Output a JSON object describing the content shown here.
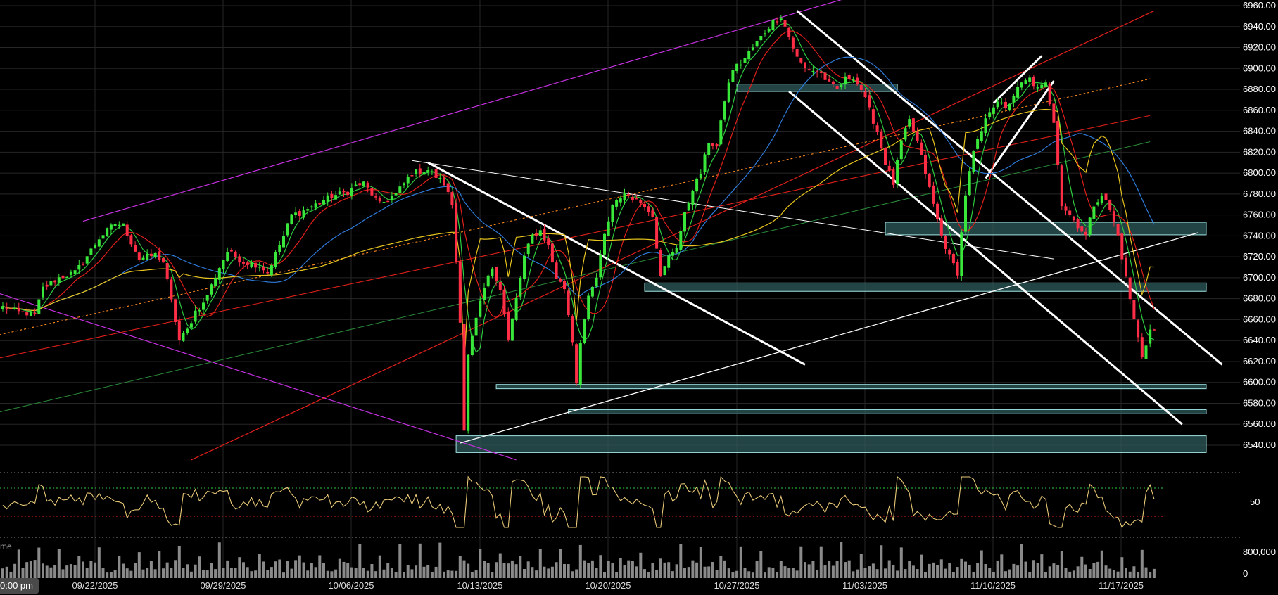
{
  "chart_data": {
    "type": "candlestick",
    "price_axis": {
      "ticks": [
        "6960.00",
        "6940.00",
        "6920.00",
        "6900.00",
        "6880.00",
        "6860.00",
        "6840.00",
        "6820.00",
        "6800.00",
        "6780.00",
        "6760.00",
        "6740.00",
        "6720.00",
        "6700.00",
        "6680.00",
        "6660.00",
        "6640.00",
        "6620.00",
        "6600.00",
        "6580.00",
        "6560.00",
        "6540.00"
      ],
      "ylim": [
        6526,
        6964
      ]
    },
    "date_labels": [
      "09/22/2025",
      "09/29/2025",
      "10/06/2025",
      "10/13/2025",
      "10/20/2025",
      "10/27/2025",
      "11/03/2025",
      "11/10/2025",
      "11/17/2025"
    ],
    "time_badge": "0:00 pm",
    "rsi_axis": {
      "ticks": [
        "50"
      ],
      "upper": 70,
      "lower": 30
    },
    "volume_axis": {
      "ticks": [
        "800,000",
        "0"
      ],
      "label": "me"
    },
    "price_anchors": [
      [
        0,
        6672
      ],
      [
        4,
        6667
      ],
      [
        8,
        6665
      ],
      [
        10,
        6690
      ],
      [
        14,
        6700
      ],
      [
        18,
        6705
      ],
      [
        20,
        6715
      ],
      [
        24,
        6738
      ],
      [
        28,
        6752
      ],
      [
        30,
        6750
      ],
      [
        34,
        6718
      ],
      [
        38,
        6722
      ],
      [
        40,
        6715
      ],
      [
        44,
        6640
      ],
      [
        46,
        6650
      ],
      [
        48,
        6668
      ],
      [
        50,
        6675
      ],
      [
        54,
        6710
      ],
      [
        56,
        6725
      ],
      [
        60,
        6715
      ],
      [
        64,
        6712
      ],
      [
        66,
        6705
      ],
      [
        70,
        6740
      ],
      [
        72,
        6760
      ],
      [
        74,
        6762
      ],
      [
        78,
        6770
      ],
      [
        82,
        6778
      ],
      [
        86,
        6782
      ],
      [
        88,
        6788
      ],
      [
        90,
        6790
      ],
      [
        94,
        6770
      ],
      [
        98,
        6780
      ],
      [
        102,
        6800
      ],
      [
        106,
        6803
      ],
      [
        110,
        6790
      ],
      [
        112,
        6770
      ],
      [
        114,
        6660
      ],
      [
        115,
        6555
      ],
      [
        116,
        6625
      ],
      [
        118,
        6660
      ],
      [
        120,
        6690
      ],
      [
        122,
        6710
      ],
      [
        124,
        6690
      ],
      [
        126,
        6640
      ],
      [
        128,
        6680
      ],
      [
        130,
        6720
      ],
      [
        132,
        6740
      ],
      [
        134,
        6745
      ],
      [
        136,
        6730
      ],
      [
        138,
        6700
      ],
      [
        140,
        6690
      ],
      [
        142,
        6640
      ],
      [
        143,
        6600
      ],
      [
        144,
        6640
      ],
      [
        146,
        6680
      ],
      [
        148,
        6700
      ],
      [
        150,
        6740
      ],
      [
        152,
        6770
      ],
      [
        154,
        6778
      ],
      [
        156,
        6780
      ],
      [
        158,
        6775
      ],
      [
        160,
        6770
      ],
      [
        162,
        6760
      ],
      [
        164,
        6700
      ],
      [
        166,
        6720
      ],
      [
        168,
        6730
      ],
      [
        170,
        6760
      ],
      [
        172,
        6785
      ],
      [
        174,
        6800
      ],
      [
        176,
        6830
      ],
      [
        178,
        6825
      ],
      [
        180,
        6870
      ],
      [
        182,
        6900
      ],
      [
        184,
        6905
      ],
      [
        186,
        6915
      ],
      [
        188,
        6925
      ],
      [
        190,
        6935
      ],
      [
        192,
        6945
      ],
      [
        194,
        6950
      ],
      [
        196,
        6930
      ],
      [
        198,
        6910
      ],
      [
        200,
        6900
      ],
      [
        202,
        6898
      ],
      [
        204,
        6895
      ],
      [
        206,
        6885
      ],
      [
        208,
        6880
      ],
      [
        210,
        6890
      ],
      [
        212,
        6892
      ],
      [
        214,
        6880
      ],
      [
        216,
        6860
      ],
      [
        218,
        6840
      ],
      [
        220,
        6810
      ],
      [
        222,
        6790
      ],
      [
        224,
        6830
      ],
      [
        226,
        6850
      ],
      [
        228,
        6830
      ],
      [
        230,
        6800
      ],
      [
        232,
        6770
      ],
      [
        234,
        6740
      ],
      [
        236,
        6720
      ],
      [
        238,
        6705
      ],
      [
        240,
        6780
      ],
      [
        242,
        6820
      ],
      [
        244,
        6840
      ],
      [
        246,
        6860
      ],
      [
        248,
        6870
      ],
      [
        250,
        6860
      ],
      [
        252,
        6875
      ],
      [
        254,
        6885
      ],
      [
        256,
        6890
      ],
      [
        258,
        6880
      ],
      [
        260,
        6885
      ],
      [
        262,
        6850
      ],
      [
        264,
        6770
      ],
      [
        266,
        6760
      ],
      [
        268,
        6750
      ],
      [
        270,
        6740
      ],
      [
        272,
        6770
      ],
      [
        274,
        6780
      ],
      [
        276,
        6765
      ],
      [
        278,
        6740
      ],
      [
        280,
        6700
      ],
      [
        282,
        6660
      ],
      [
        284,
        6625
      ],
      [
        286,
        6650
      ]
    ],
    "moving_averages": [
      {
        "color": "#2ecc40",
        "period": 5
      },
      {
        "color": "#e0201a",
        "period": 10
      },
      {
        "color": "#2e7ad8",
        "period": 30
      },
      {
        "color": "#e8c51e",
        "period": 80
      }
    ],
    "zones": [
      {
        "start": 183,
        "end": 223,
        "low": 6878,
        "high": 6885
      },
      {
        "start": 220,
        "end": 300,
        "low": 6741,
        "high": 6753
      },
      {
        "start": 160,
        "end": 300,
        "low": 6687,
        "high": 6695
      },
      {
        "start": 123,
        "end": 300,
        "low": 6594,
        "high": 6598
      },
      {
        "start": 141,
        "end": 300,
        "low": 6570,
        "high": 6574
      },
      {
        "start": 113,
        "end": 300,
        "low": 6533,
        "high": 6549
      }
    ],
    "trendlines": [
      {
        "color": "#c531e0",
        "width": 1.2,
        "dash": "",
        "points": [
          [
            20,
            6754
          ],
          [
            212,
            6969
          ]
        ]
      },
      {
        "color": "#c531e0",
        "width": 1.2,
        "dash": "",
        "points": [
          [
            -5,
            6690
          ],
          [
            128,
            6526
          ]
        ]
      },
      {
        "color": "#e0201a",
        "width": 1.2,
        "dash": "",
        "points": [
          [
            47,
            6526
          ],
          [
            287,
            6955
          ]
        ]
      },
      {
        "color": "#e0201a",
        "width": 1.1,
        "dash": "",
        "points": [
          [
            -5,
            6620
          ],
          [
            286,
            6855
          ]
        ]
      },
      {
        "color": "#ff8a1e",
        "width": 1.1,
        "dash": "3,3",
        "points": [
          [
            -5,
            6642
          ],
          [
            286,
            6890
          ]
        ]
      },
      {
        "color": "#2a8a3a",
        "width": 1.0,
        "dash": "",
        "points": [
          [
            -5,
            6568
          ],
          [
            286,
            6830
          ]
        ]
      },
      {
        "color": "#ffffff",
        "width": 1.0,
        "dash": "",
        "points": [
          [
            102,
            6812
          ],
          [
            262,
            6718
          ]
        ]
      },
      {
        "color": "#ffffff",
        "width": 1.3,
        "dash": "",
        "points": [
          [
            114,
            6542
          ],
          [
            298,
            6743
          ]
        ]
      },
      {
        "color": "#ffffff",
        "width": 3,
        "dash": "",
        "points": [
          [
            106,
            6810
          ],
          [
            200,
            6617
          ]
        ]
      },
      {
        "color": "#ffffff",
        "width": 3,
        "dash": "",
        "points": [
          [
            198,
            6955
          ],
          [
            304,
            6617
          ]
        ]
      },
      {
        "color": "#ffffff",
        "width": 3,
        "dash": "",
        "points": [
          [
            196,
            6878
          ],
          [
            294,
            6560
          ]
        ]
      },
      {
        "color": "#ffffff",
        "width": 3,
        "dash": "",
        "points": [
          [
            247,
            6867
          ],
          [
            259,
            6912
          ]
        ]
      },
      {
        "color": "#ffffff",
        "width": 3,
        "dash": "",
        "points": [
          [
            245,
            6795
          ],
          [
            262,
            6888
          ]
        ]
      }
    ]
  }
}
